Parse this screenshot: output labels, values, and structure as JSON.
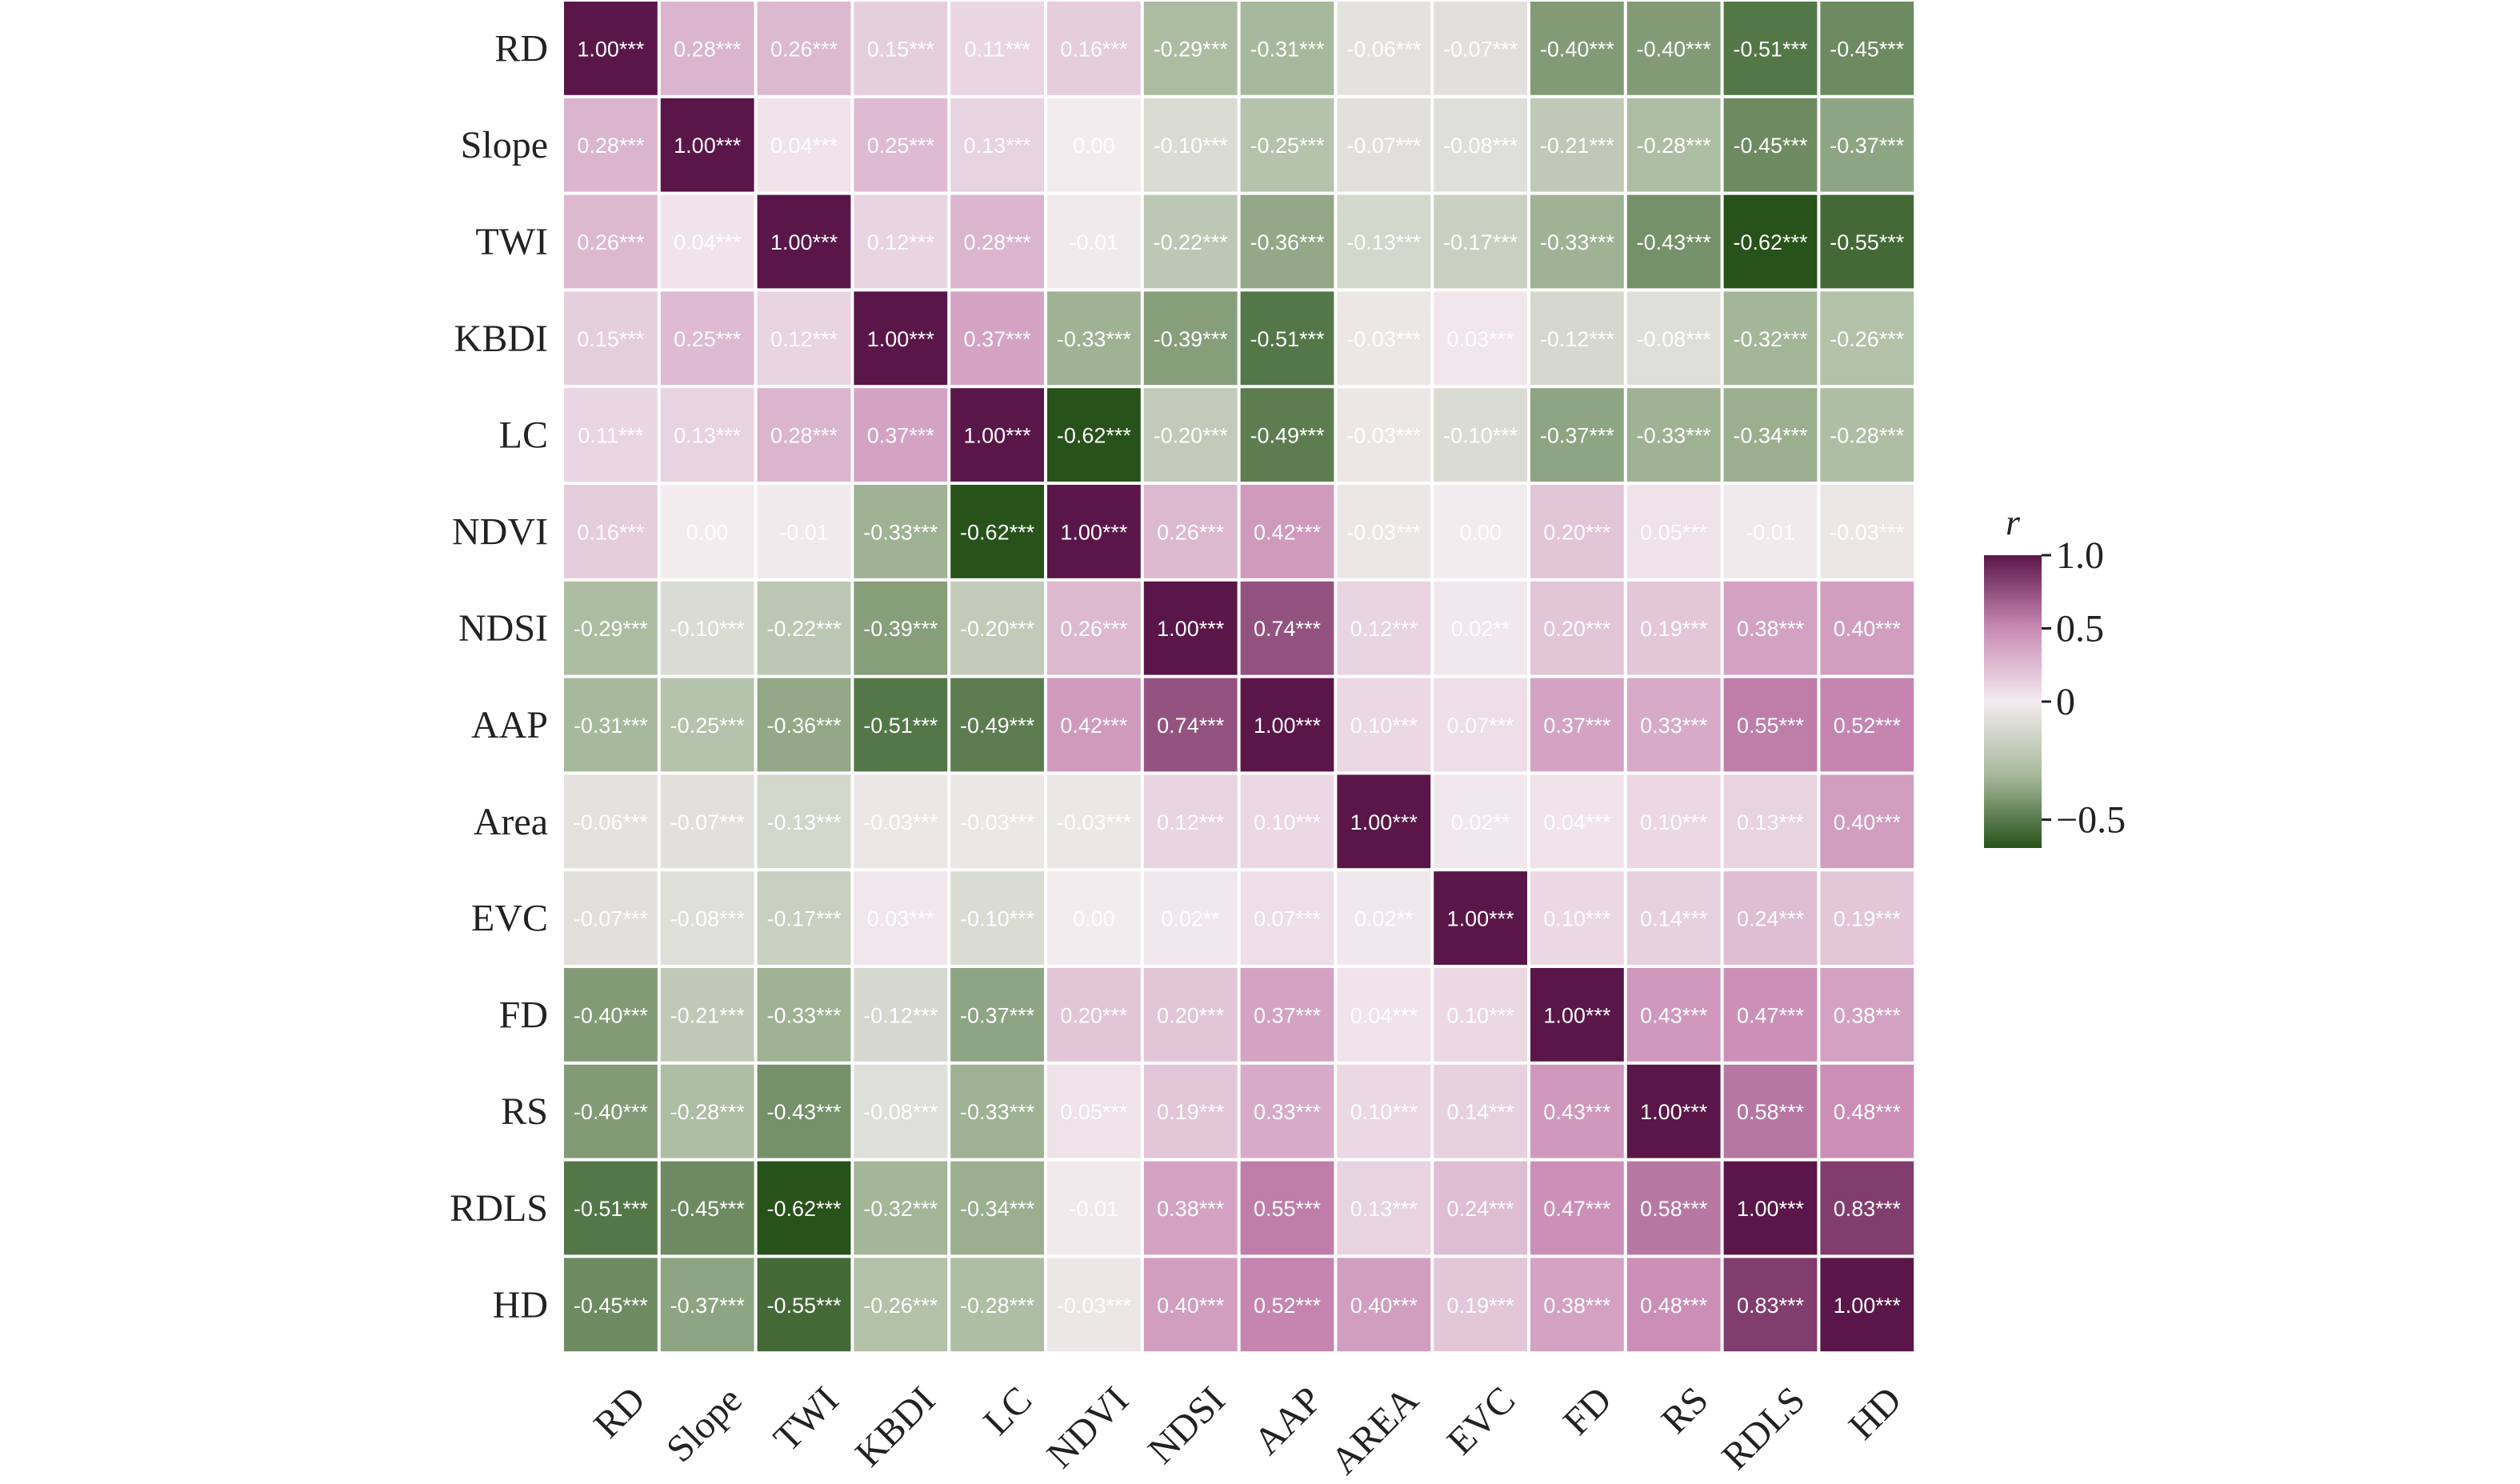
{
  "chart_data": {
    "type": "heatmap",
    "title": "",
    "row_labels": [
      "RD",
      "Slope",
      "TWI",
      "KBDI",
      "LC",
      "NDVI",
      "NDSI",
      "AAP",
      "Area",
      "EVC",
      "FD",
      "RS",
      "RDLS",
      "HD"
    ],
    "col_labels": [
      "RD",
      "Slope",
      "TWI",
      "KBDI",
      "LC",
      "NDVI",
      "NDSI",
      "AAP",
      "AREA",
      "EVC",
      "FD",
      "RS",
      "RDLS",
      "HD"
    ],
    "values": [
      [
        1.0,
        0.28,
        0.26,
        0.15,
        0.11,
        0.16,
        -0.29,
        -0.31,
        -0.06,
        -0.07,
        -0.4,
        -0.4,
        -0.51,
        -0.45
      ],
      [
        0.28,
        1.0,
        0.04,
        0.25,
        0.13,
        0.0,
        -0.1,
        -0.25,
        -0.07,
        -0.08,
        -0.21,
        -0.28,
        -0.45,
        -0.37
      ],
      [
        0.26,
        0.04,
        1.0,
        0.12,
        0.28,
        -0.01,
        -0.22,
        -0.36,
        -0.13,
        -0.17,
        -0.33,
        -0.43,
        -0.62,
        -0.55
      ],
      [
        0.15,
        0.25,
        0.12,
        1.0,
        0.37,
        -0.33,
        -0.39,
        -0.51,
        -0.03,
        0.03,
        -0.12,
        -0.08,
        -0.32,
        -0.26
      ],
      [
        0.11,
        0.13,
        0.28,
        0.37,
        1.0,
        -0.62,
        -0.2,
        -0.49,
        -0.03,
        -0.1,
        -0.37,
        -0.33,
        -0.34,
        -0.28
      ],
      [
        0.16,
        0.0,
        -0.01,
        -0.33,
        -0.62,
        1.0,
        0.26,
        0.42,
        -0.03,
        0.0,
        0.2,
        0.05,
        -0.01,
        -0.03
      ],
      [
        -0.29,
        -0.1,
        -0.22,
        -0.39,
        -0.2,
        0.26,
        1.0,
        0.74,
        0.12,
        0.02,
        0.2,
        0.19,
        0.38,
        0.4
      ],
      [
        -0.31,
        -0.25,
        -0.36,
        -0.51,
        -0.49,
        0.42,
        0.74,
        1.0,
        0.1,
        0.07,
        0.37,
        0.33,
        0.55,
        0.52
      ],
      [
        -0.06,
        -0.07,
        -0.13,
        -0.03,
        -0.03,
        -0.03,
        0.12,
        0.1,
        1.0,
        0.02,
        0.04,
        0.1,
        0.13,
        0.4
      ],
      [
        -0.07,
        -0.08,
        -0.17,
        0.03,
        -0.1,
        0.0,
        0.02,
        0.07,
        0.02,
        1.0,
        0.1,
        0.14,
        0.24,
        0.19
      ],
      [
        -0.4,
        -0.21,
        -0.33,
        -0.12,
        -0.37,
        0.2,
        0.2,
        0.37,
        0.04,
        0.1,
        1.0,
        0.43,
        0.47,
        0.38
      ],
      [
        -0.4,
        -0.28,
        -0.43,
        -0.08,
        -0.33,
        0.05,
        0.19,
        0.33,
        0.1,
        0.14,
        0.43,
        1.0,
        0.58,
        0.48
      ],
      [
        -0.51,
        -0.45,
        -0.62,
        -0.32,
        -0.34,
        -0.01,
        0.38,
        0.55,
        0.13,
        0.24,
        0.47,
        0.58,
        1.0,
        0.83
      ],
      [
        -0.45,
        -0.37,
        -0.55,
        -0.26,
        -0.28,
        -0.03,
        0.4,
        0.52,
        0.4,
        0.19,
        0.38,
        0.48,
        0.83,
        1.0
      ]
    ],
    "labels": [
      [
        "1.00***",
        "0.28***",
        "0.26***",
        "0.15***",
        "0.11***",
        "0.16***",
        "-0.29***",
        "-0.31***",
        "-0.06***",
        "-0.07***",
        "-0.40***",
        "-0.40***",
        "-0.51***",
        "-0.45***"
      ],
      [
        "0.28***",
        "1.00***",
        "0.04***",
        "0.25***",
        "0.13***",
        "0.00",
        "-0.10***",
        "-0.25***",
        "-0.07***",
        "-0.08***",
        "-0.21***",
        "-0.28***",
        "-0.45***",
        "-0.37***"
      ],
      [
        "0.26***",
        "0.04***",
        "1.00***",
        "0.12***",
        "0.28***",
        "-0.01",
        "-0.22***",
        "-0.36***",
        "-0.13***",
        "-0.17***",
        "-0.33***",
        "-0.43***",
        "-0.62***",
        "-0.55***"
      ],
      [
        "0.15***",
        "0.25***",
        "0.12***",
        "1.00***",
        "0.37***",
        "-0.33***",
        "-0.39***",
        "-0.51***",
        "-0.03***",
        "0.03***",
        "-0.12***",
        "-0.08***",
        "-0.32***",
        "-0.26***"
      ],
      [
        "0.11***",
        "0.13***",
        "0.28***",
        "0.37***",
        "1.00***",
        "-0.62***",
        "-0.20***",
        "-0.49***",
        "-0.03***",
        "-0.10***",
        "-0.37***",
        "-0.33***",
        "-0.34***",
        "-0.28***"
      ],
      [
        "0.16***",
        "0.00",
        "-0.01",
        "-0.33***",
        "-0.62***",
        "1.00***",
        "0.26***",
        "0.42***",
        "-0.03***",
        "0.00",
        "0.20***",
        "0.05***",
        "-0.01",
        "-0.03***"
      ],
      [
        "-0.29***",
        "-0.10***",
        "-0.22***",
        "-0.39***",
        "-0.20***",
        "0.26***",
        "1.00***",
        "0.74***",
        "0.12***",
        "0.02**",
        "0.20***",
        "0.19***",
        "0.38***",
        "0.40***"
      ],
      [
        "-0.31***",
        "-0.25***",
        "-0.36***",
        "-0.51***",
        "-0.49***",
        "0.42***",
        "0.74***",
        "1.00***",
        "0.10***",
        "0.07***",
        "0.37***",
        "0.33***",
        "0.55***",
        "0.52***"
      ],
      [
        "-0.06***",
        "-0.07***",
        "-0.13***",
        "-0.03***",
        "-0.03***",
        "-0.03***",
        "0.12***",
        "0.10***",
        "1.00***",
        "0.02**",
        "0.04***",
        "0.10***",
        "0.13***",
        "0.40***"
      ],
      [
        "-0.07***",
        "-0.08***",
        "-0.17***",
        "0.03***",
        "-0.10***",
        "0.00",
        "0.02**",
        "0.07***",
        "0.02**",
        "1.00***",
        "0.10***",
        "0.14***",
        "0.24***",
        "0.19***"
      ],
      [
        "-0.40***",
        "-0.21***",
        "-0.33***",
        "-0.12***",
        "-0.37***",
        "0.20***",
        "0.20***",
        "0.37***",
        "0.04***",
        "0.10***",
        "1.00***",
        "0.43***",
        "0.47***",
        "0.38***"
      ],
      [
        "-0.40***",
        "-0.28***",
        "-0.43***",
        "-0.08***",
        "-0.33***",
        "0.05***",
        "0.19***",
        "0.33***",
        "0.10***",
        "0.14***",
        "0.43***",
        "1.00***",
        "0.58***",
        "0.48***"
      ],
      [
        "-0.51***",
        "-0.45***",
        "-0.62***",
        "-0.32***",
        "-0.34***",
        "-0.01",
        "0.38***",
        "0.55***",
        "0.13***",
        "0.24***",
        "0.47***",
        "0.58***",
        "1.00***",
        "0.83***"
      ],
      [
        "-0.45***",
        "-0.37***",
        "-0.55***",
        "-0.26***",
        "-0.28***",
        "-0.03***",
        "0.40***",
        "0.52***",
        "0.40***",
        "0.19***",
        "0.38***",
        "0.48***",
        "0.83***",
        "1.00***"
      ]
    ],
    "colorbar": {
      "title": "r",
      "ticks": [
        1.0,
        0.5,
        0,
        -0.5
      ],
      "tick_labels": [
        "1.0",
        "0.5",
        "0",
        "−0.5"
      ],
      "range": [
        -0.62,
        1.0
      ],
      "colors": {
        "min": "#27521a",
        "mid_low": "#a7b99c",
        "center": "#f3ecef",
        "mid_high": "#c98ab4",
        "max": "#5a1648"
      }
    }
  }
}
